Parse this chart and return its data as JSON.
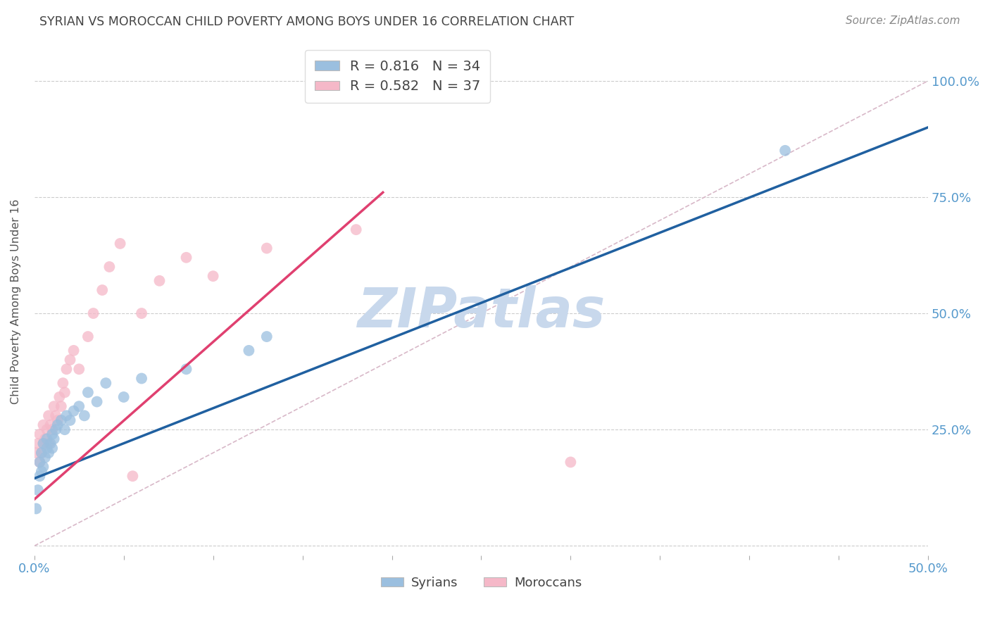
{
  "title": "SYRIAN VS MOROCCAN CHILD POVERTY AMONG BOYS UNDER 16 CORRELATION CHART",
  "source": "Source: ZipAtlas.com",
  "ylabel_label": "Child Poverty Among Boys Under 16",
  "xlim": [
    0.0,
    0.5
  ],
  "ylim": [
    -0.02,
    1.07
  ],
  "xticks": [
    0.0,
    0.05,
    0.1,
    0.15,
    0.2,
    0.25,
    0.3,
    0.35,
    0.4,
    0.45,
    0.5
  ],
  "xticklabels": [
    "0.0%",
    "",
    "",
    "",
    "",
    "",
    "",
    "",
    "",
    "",
    "50.0%"
  ],
  "yticks": [
    0.0,
    0.25,
    0.5,
    0.75,
    1.0
  ],
  "yticklabels_right": [
    "",
    "25.0%",
    "50.0%",
    "75.0%",
    "100.0%"
  ],
  "syrians_x": [
    0.001,
    0.002,
    0.003,
    0.003,
    0.004,
    0.004,
    0.005,
    0.005,
    0.006,
    0.007,
    0.007,
    0.008,
    0.009,
    0.01,
    0.01,
    0.011,
    0.012,
    0.013,
    0.015,
    0.017,
    0.018,
    0.02,
    0.022,
    0.025,
    0.028,
    0.03,
    0.035,
    0.04,
    0.05,
    0.06,
    0.085,
    0.12,
    0.13,
    0.42
  ],
  "syrians_y": [
    0.08,
    0.12,
    0.15,
    0.18,
    0.16,
    0.2,
    0.17,
    0.22,
    0.19,
    0.21,
    0.23,
    0.2,
    0.22,
    0.21,
    0.24,
    0.23,
    0.25,
    0.26,
    0.27,
    0.25,
    0.28,
    0.27,
    0.29,
    0.3,
    0.28,
    0.33,
    0.31,
    0.35,
    0.32,
    0.36,
    0.38,
    0.42,
    0.45,
    0.85
  ],
  "moroccans_x": [
    0.001,
    0.002,
    0.003,
    0.003,
    0.004,
    0.005,
    0.005,
    0.006,
    0.007,
    0.008,
    0.008,
    0.009,
    0.01,
    0.011,
    0.012,
    0.013,
    0.014,
    0.015,
    0.016,
    0.017,
    0.018,
    0.02,
    0.022,
    0.025,
    0.03,
    0.033,
    0.038,
    0.042,
    0.048,
    0.055,
    0.06,
    0.07,
    0.085,
    0.1,
    0.13,
    0.18,
    0.3
  ],
  "moroccans_y": [
    0.2,
    0.22,
    0.18,
    0.24,
    0.2,
    0.22,
    0.26,
    0.23,
    0.25,
    0.22,
    0.28,
    0.26,
    0.25,
    0.3,
    0.28,
    0.27,
    0.32,
    0.3,
    0.35,
    0.33,
    0.38,
    0.4,
    0.42,
    0.38,
    0.45,
    0.5,
    0.55,
    0.6,
    0.65,
    0.15,
    0.5,
    0.57,
    0.62,
    0.58,
    0.64,
    0.68,
    0.18
  ],
  "syrian_color": "#9BBFDF",
  "moroccan_color": "#F5B8C8",
  "syrian_line_color": "#2060A0",
  "moroccan_line_color": "#E04070",
  "diagonal_color": "#D8B8C8",
  "R_syrian": 0.816,
  "N_syrian": 34,
  "R_moroccan": 0.582,
  "N_moroccan": 37,
  "watermark": "ZIPatlas",
  "watermark_color": "#C8D8EC",
  "background_color": "#FFFFFF",
  "grid_color": "#CCCCCC",
  "tick_label_color": "#5599CC",
  "title_color": "#444444",
  "source_color": "#888888",
  "ylabel_color": "#555555",
  "syrian_line_x0": 0.0,
  "syrian_line_y0": 0.145,
  "syrian_line_x1": 0.5,
  "syrian_line_y1": 0.9,
  "moroccan_line_x0": 0.0,
  "moroccan_line_y0": 0.1,
  "moroccan_line_x1": 0.195,
  "moroccan_line_y1": 0.76
}
